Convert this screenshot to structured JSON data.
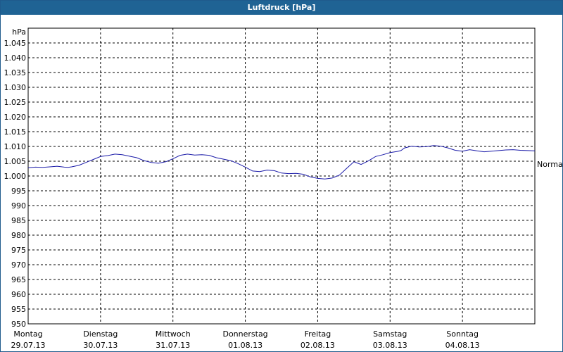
{
  "chart_data": {
    "type": "line",
    "title": "Luftdruck [hPa]",
    "ylabel": "hPa",
    "ylim": [
      950,
      1050
    ],
    "yticks": [
      950,
      955,
      960,
      965,
      970,
      975,
      980,
      985,
      990,
      995,
      1000,
      1005,
      1010,
      1015,
      1020,
      1025,
      1030,
      1035,
      1040,
      1045
    ],
    "ytick_labels": [
      "950",
      "955",
      "960",
      "965",
      "970",
      "975",
      "980",
      "985",
      "990",
      "995",
      "1.000",
      "1.005",
      "1.010",
      "1.015",
      "1.020",
      "1.025",
      "1.030",
      "1.035",
      "1.040",
      "1.045"
    ],
    "xlim": [
      0,
      7
    ],
    "xticks": [
      {
        "day": "Montag",
        "date": "29.07.13"
      },
      {
        "day": "Dienstag",
        "date": "30.07.13"
      },
      {
        "day": "Mittwoch",
        "date": "31.07.13"
      },
      {
        "day": "Donnerstag",
        "date": "01.08.13"
      },
      {
        "day": "Freitag",
        "date": "02.08.13"
      },
      {
        "day": "Samstag",
        "date": "03.08.13"
      },
      {
        "day": "Sonntag",
        "date": "04.08.13"
      }
    ],
    "reference_label": "Normal",
    "reference_value": 1004,
    "grid": true,
    "line_color": "#1a1aa8",
    "series": [
      {
        "x": [
          0,
          0.1,
          0.2,
          0.3,
          0.4,
          0.5,
          0.55,
          0.6,
          0.7,
          0.8,
          0.9,
          1.0,
          1.1,
          1.2,
          1.3,
          1.4,
          1.5,
          1.6,
          1.7,
          1.8,
          1.9,
          2.0,
          2.1,
          2.2,
          2.3,
          2.4,
          2.5,
          2.6,
          2.7,
          2.8,
          2.9,
          3.0,
          3.1,
          3.2,
          3.3,
          3.4,
          3.5,
          3.6,
          3.7,
          3.8,
          3.9,
          4.0,
          4.1,
          4.2,
          4.3,
          4.4,
          4.5,
          4.6,
          4.7,
          4.8,
          4.9,
          5.0,
          5.1,
          5.15,
          5.2,
          5.3,
          5.4,
          5.5,
          5.6,
          5.7,
          5.8,
          5.9,
          6.0,
          6.1,
          6.2,
          6.3,
          6.4,
          6.5,
          6.6,
          6.7,
          6.8,
          6.9,
          7.0
        ],
        "y": [
          1002.8,
          1003.0,
          1002.9,
          1003.1,
          1003.3,
          1003.0,
          1002.9,
          1003.1,
          1003.6,
          1004.6,
          1005.6,
          1006.6,
          1006.9,
          1007.4,
          1007.2,
          1006.7,
          1006.2,
          1005.2,
          1004.6,
          1004.3,
          1004.8,
          1005.8,
          1007.0,
          1007.4,
          1007.1,
          1007.2,
          1007.0,
          1006.2,
          1005.7,
          1005.2,
          1004.2,
          1003.0,
          1001.7,
          1001.5,
          1002.0,
          1001.8,
          1001.0,
          1000.8,
          1000.9,
          1000.6,
          999.7,
          999.2,
          999.0,
          999.3,
          1000.3,
          1002.6,
          1004.8,
          1003.9,
          1005.1,
          1006.6,
          1007.2,
          1007.9,
          1008.3,
          1008.6,
          1009.5,
          1010.1,
          1009.8,
          1009.9,
          1010.3,
          1010.1,
          1009.5,
          1008.7,
          1008.4,
          1008.9,
          1008.5,
          1008.2,
          1008.4,
          1008.6,
          1008.8,
          1008.9,
          1008.7,
          1008.6,
          1008.5
        ]
      }
    ]
  }
}
